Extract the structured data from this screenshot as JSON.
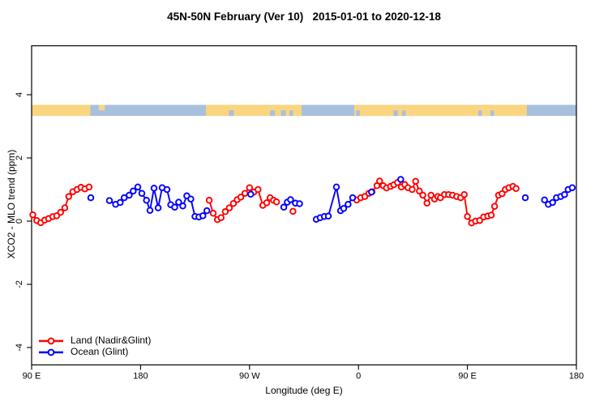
{
  "chart_data": {
    "type": "line",
    "title": "45N-50N February (Ver 10)   2015-01-01 to 2020-12-18",
    "xlabel": "Longitude (deg E)",
    "ylabel": "XCO2 - MLO trend (ppm)",
    "xlim": [
      90,
      540
    ],
    "ylim": [
      -4.55,
      5.55
    ],
    "grid": "off",
    "frame_color": "#000000",
    "background": "#ffffff",
    "x_ticks": [
      {
        "v": 90,
        "label": "90 E"
      },
      {
        "v": 180,
        "label": "180"
      },
      {
        "v": 270,
        "label": "90 W"
      },
      {
        "v": 360,
        "label": "0"
      },
      {
        "v": 450,
        "label": "90 E"
      },
      {
        "v": 540,
        "label": "180"
      }
    ],
    "y_ticks": [
      {
        "v": -4,
        "label": "-4"
      },
      {
        "v": -2,
        "label": "-2"
      },
      {
        "v": 0,
        "label": "0"
      },
      {
        "v": 2,
        "label": "2"
      },
      {
        "v": 4,
        "label": "4"
      }
    ],
    "map_strip": {
      "description": "45N-50N latitude band land/ocean map",
      "y_top": 3.68,
      "y_bottom": 3.33,
      "land_color": "#FAD580",
      "ocean_color": "#A8C0DD",
      "segments": [
        {
          "type": "ocean",
          "from": 90,
          "to": 540,
          "extent": "full"
        },
        {
          "type": "land",
          "from": 90,
          "to": 138.5,
          "extent": "full"
        },
        {
          "type": "land",
          "from": 145.5,
          "to": 150.5,
          "extent": "top"
        },
        {
          "type": "land",
          "from": 234,
          "to": 313,
          "extent": "full"
        },
        {
          "type": "ocean",
          "from": 253,
          "to": 257,
          "extent": "bottom"
        },
        {
          "type": "ocean",
          "from": 287,
          "to": 291,
          "extent": "bottom"
        },
        {
          "type": "ocean",
          "from": 296,
          "to": 300,
          "extent": "bottom"
        },
        {
          "type": "ocean",
          "from": 303,
          "to": 306,
          "extent": "bottom"
        },
        {
          "type": "land",
          "from": 356.5,
          "to": 499,
          "extent": "full"
        },
        {
          "type": "ocean",
          "from": 358,
          "to": 361,
          "extent": "bottom"
        },
        {
          "type": "ocean",
          "from": 389,
          "to": 392.5,
          "extent": "bottom"
        },
        {
          "type": "ocean",
          "from": 396,
          "to": 399,
          "extent": "bottom"
        },
        {
          "type": "ocean",
          "from": 459,
          "to": 462,
          "extent": "bottom"
        },
        {
          "type": "ocean",
          "from": 469,
          "to": 472,
          "extent": "bottom"
        }
      ]
    },
    "series": [
      {
        "name": "Land (Nadir&Glint)",
        "color": "#ff0000",
        "marker": "open-circle",
        "segments": [
          [
            [
              91,
              0.2
            ],
            [
              94.2,
              0.02
            ],
            [
              97.5,
              -0.05
            ],
            [
              100.8,
              0.03
            ],
            [
              104,
              0.08
            ],
            [
              107.4,
              0.14
            ],
            [
              110.7,
              0.17
            ],
            [
              114,
              0.28
            ],
            [
              117.4,
              0.42
            ],
            [
              120.7,
              0.78
            ],
            [
              124,
              0.93
            ],
            [
              127.4,
              1.0
            ],
            [
              130.8,
              1.07
            ],
            [
              134,
              1.02
            ],
            [
              137.5,
              1.08
            ]
          ],
          [
            [
              236.7,
              0.66
            ],
            [
              240,
              0.25
            ],
            [
              243.5,
              0.05
            ],
            [
              246.5,
              0.11
            ],
            [
              250,
              0.3
            ],
            [
              253.3,
              0.42
            ],
            [
              256.7,
              0.56
            ],
            [
              259.8,
              0.68
            ],
            [
              262.8,
              0.76
            ],
            [
              266.2,
              0.88
            ],
            [
              270,
              1.06
            ],
            [
              273.5,
              0.92
            ],
            [
              277,
              1.0
            ],
            [
              281,
              0.5
            ],
            [
              284.2,
              0.58
            ],
            [
              287,
              0.74
            ],
            [
              289.8,
              0.66
            ],
            [
              292.3,
              0.61
            ]
          ],
          [
            [
              305.9,
              0.31
            ]
          ],
          [
            [
              358.5,
              0.67
            ],
            [
              361.9,
              0.74
            ],
            [
              365.2,
              0.78
            ],
            [
              368.6,
              0.88
            ],
            [
              371.2,
              0.93
            ],
            [
              375.3,
              1.12
            ],
            [
              377.5,
              1.27
            ],
            [
              380.4,
              1.12
            ],
            [
              383.1,
              1.05
            ],
            [
              386.5,
              1.1
            ],
            [
              389.2,
              1.15
            ],
            [
              392.3,
              1.22
            ],
            [
              395.4,
              1.08
            ],
            [
              398.2,
              1.16
            ],
            [
              400.9,
              1.06
            ],
            [
              404.3,
              1.0
            ],
            [
              407.2,
              1.26
            ],
            [
              410.3,
              0.95
            ],
            [
              413.2,
              0.82
            ],
            [
              416.6,
              0.57
            ],
            [
              419.9,
              0.82
            ],
            [
              422.8,
              0.7
            ],
            [
              425.5,
              0.78
            ],
            [
              427.7,
              0.74
            ],
            [
              431.0,
              0.84
            ],
            [
              434.4,
              0.84
            ],
            [
              437.7,
              0.82
            ],
            [
              441.1,
              0.78
            ],
            [
              444.4,
              0.74
            ],
            [
              447.4,
              0.84
            ],
            [
              450.0,
              0.15
            ],
            [
              453.4,
              -0.06
            ],
            [
              456.7,
              0.0
            ],
            [
              460.1,
              0.02
            ],
            [
              463.4,
              0.13
            ],
            [
              466.8,
              0.16
            ],
            [
              469.7,
              0.19
            ],
            [
              472.4,
              0.47
            ],
            [
              475.7,
              0.82
            ],
            [
              478.6,
              0.87
            ],
            [
              481.3,
              1.0
            ],
            [
              484.2,
              1.06
            ],
            [
              487.6,
              1.1
            ],
            [
              490.2,
              1.03
            ]
          ]
        ]
      },
      {
        "name": "Ocean (Glint)",
        "color": "#0000ff",
        "marker": "open-circle",
        "segments": [
          [
            [
              138.9,
              0.74
            ]
          ],
          [
            [
              154.3,
              0.65
            ],
            [
              159.4,
              0.53
            ],
            [
              163.2,
              0.59
            ],
            [
              166.5,
              0.74
            ],
            [
              170.6,
              0.82
            ],
            [
              173.9,
              0.95
            ],
            [
              177.7,
              1.08
            ],
            [
              181.1,
              0.88
            ],
            [
              184.9,
              0.66
            ],
            [
              187.8,
              0.34
            ],
            [
              191.1,
              1.04
            ],
            [
              194.5,
              0.42
            ],
            [
              197.8,
              1.06
            ],
            [
              201.8,
              1.0
            ],
            [
              204.9,
              0.52
            ],
            [
              208.2,
              0.44
            ],
            [
              211.5,
              0.6
            ],
            [
              214.9,
              0.48
            ],
            [
              218.2,
              0.8
            ],
            [
              221.5,
              0.7
            ],
            [
              224.9,
              0.15
            ],
            [
              228.2,
              0.13
            ],
            [
              231.5,
              0.17
            ],
            [
              234.8,
              0.33
            ]
          ],
          [
            [
              271,
              0.85
            ]
          ],
          [
            [
              298.3,
              0.44
            ],
            [
              301.2,
              0.6
            ],
            [
              303.9,
              0.68
            ],
            [
              307.9,
              0.57
            ],
            [
              311.3,
              0.55
            ]
          ],
          [
            [
              325.1,
              0.06
            ],
            [
              328.4,
              0.11
            ],
            [
              331.8,
              0.15
            ],
            [
              335.1,
              0.16
            ],
            [
              341.8,
              1.08
            ],
            [
              345.2,
              0.33
            ],
            [
              347.8,
              0.4
            ],
            [
              351.4,
              0.53
            ],
            [
              355.2,
              0.74
            ]
          ],
          [
            [
              370.8,
              0.92
            ]
          ],
          [
            [
              394.9,
              1.32
            ]
          ],
          [
            [
              497.8,
              0.74
            ]
          ],
          [
            [
              513.7,
              0.67
            ],
            [
              516.8,
              0.53
            ],
            [
              520.4,
              0.59
            ],
            [
              523.5,
              0.74
            ],
            [
              527.1,
              0.78
            ],
            [
              530.2,
              0.84
            ],
            [
              533.2,
              1.0
            ],
            [
              536.6,
              1.06
            ]
          ]
        ]
      }
    ],
    "legend": {
      "position": "bottom-left",
      "entries": [
        "Land (Nadir&Glint)",
        "Ocean (Glint)"
      ]
    }
  }
}
